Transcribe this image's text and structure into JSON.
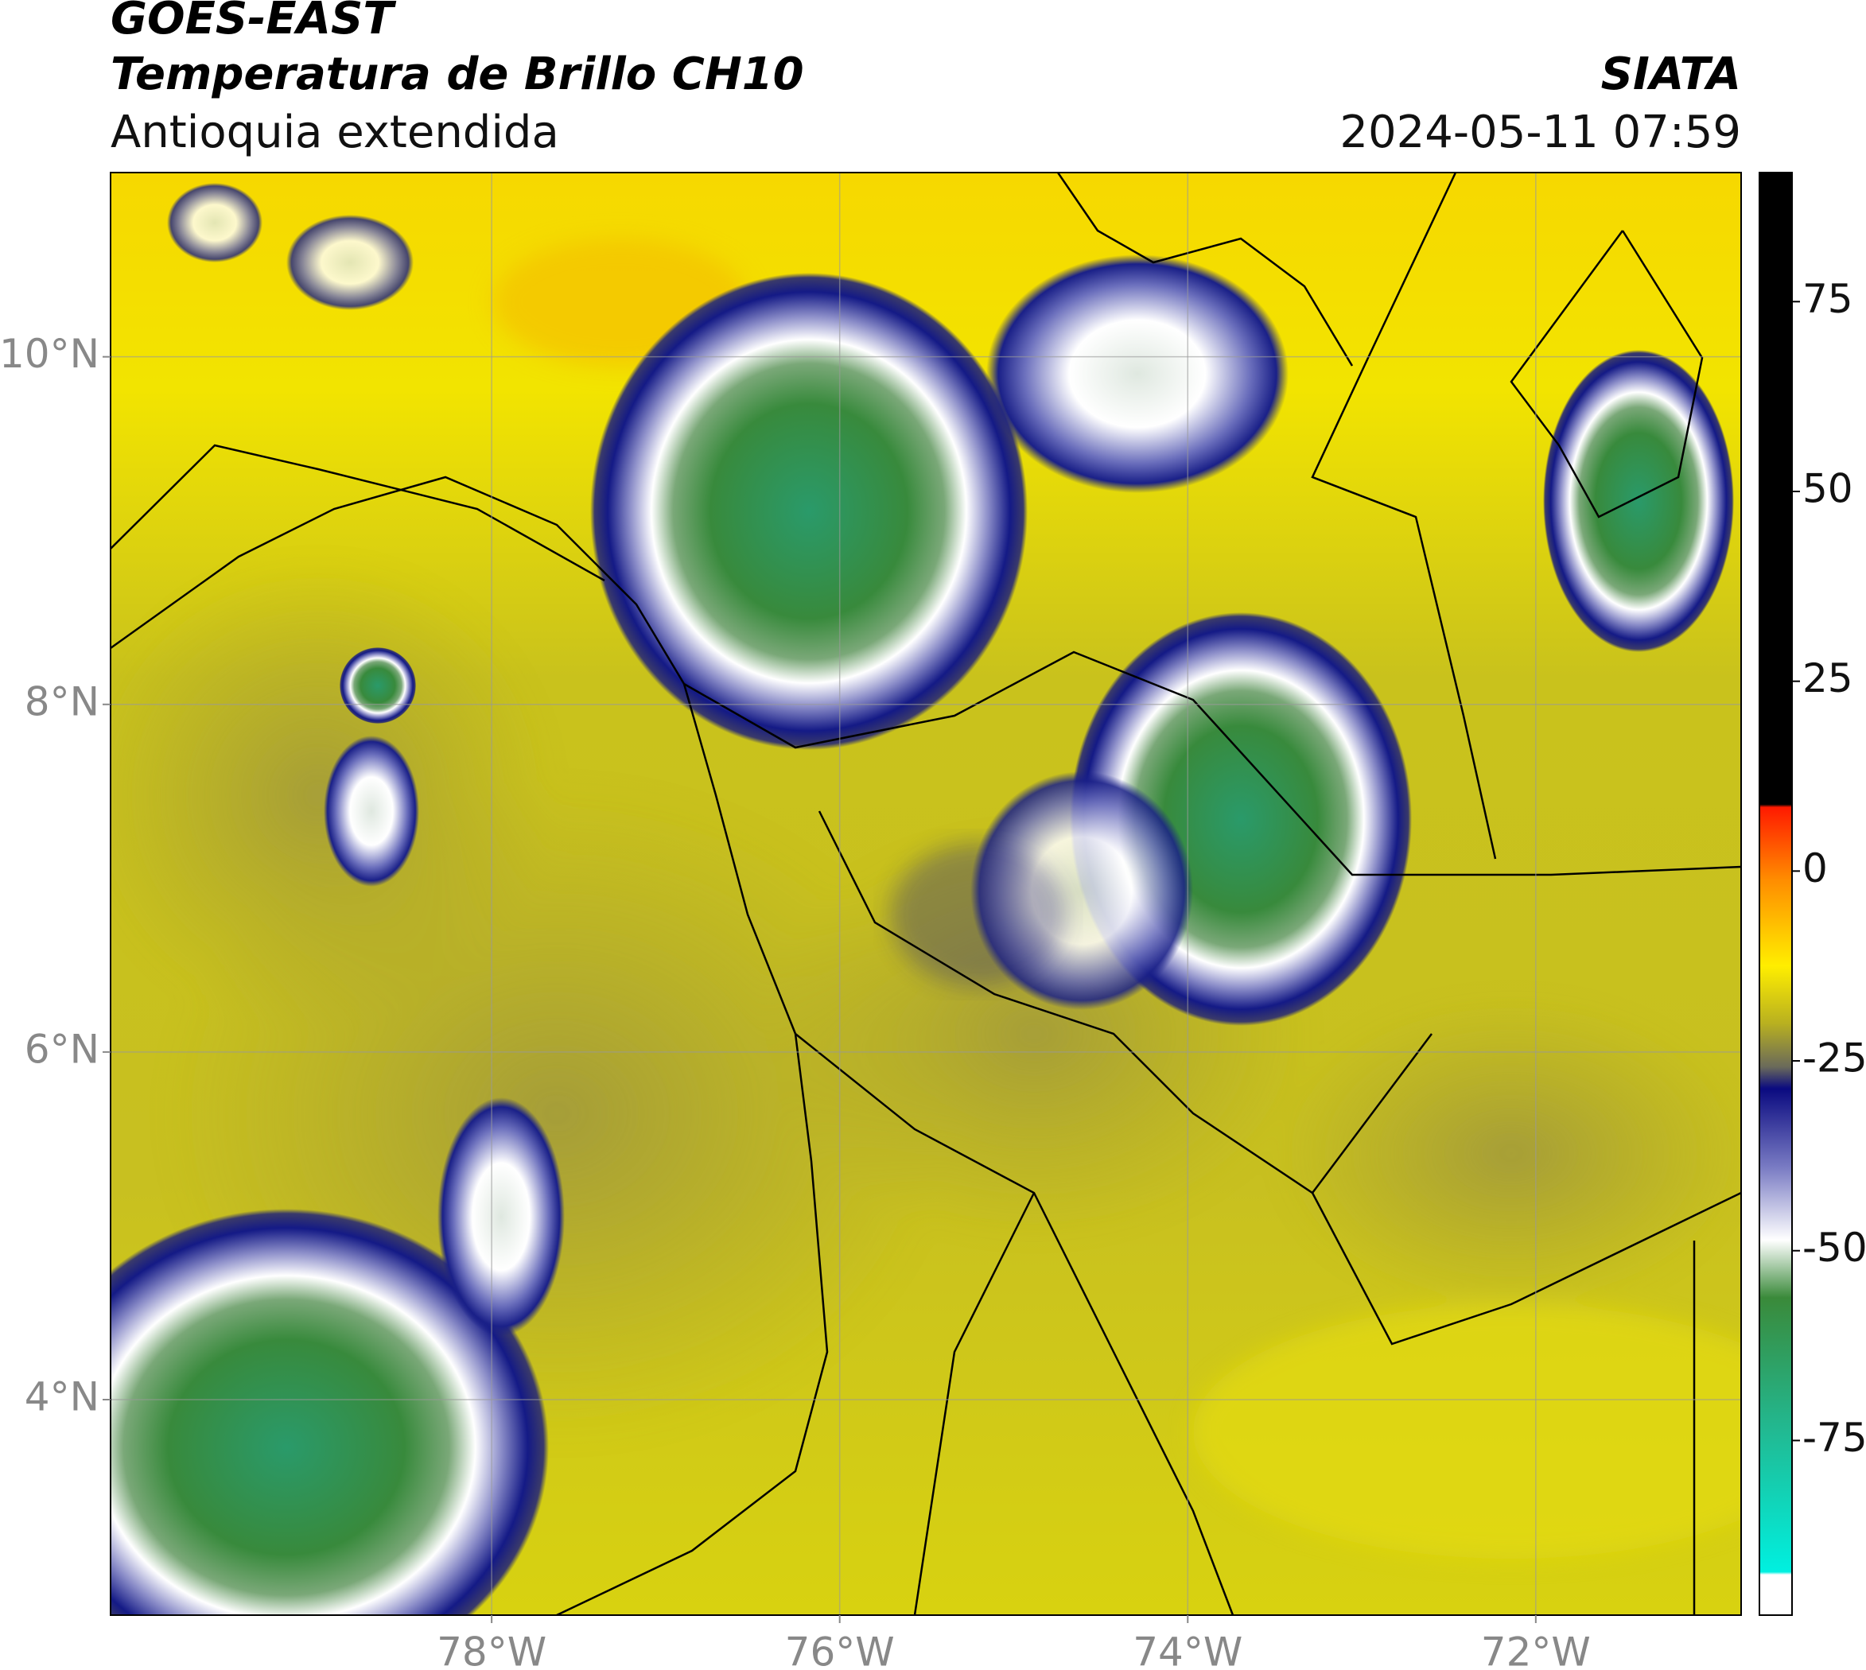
{
  "header": {
    "title": "GOES-EAST",
    "subtitle": "Temperatura de Brillo CH10",
    "region": "Antioquia extendida",
    "source": "SIATA",
    "datetime": "2024-05-11 07:59"
  },
  "map": {
    "lonlim": [
      -80.19,
      -70.82
    ],
    "latlim": [
      2.76,
      11.06
    ],
    "lonticks": [
      {
        "value": -78,
        "label": "78°W"
      },
      {
        "value": -76,
        "label": "76°W"
      },
      {
        "value": -74,
        "label": "74°W"
      },
      {
        "value": -72,
        "label": "72°W"
      }
    ],
    "latticks": [
      {
        "value": 10,
        "label": "10°N"
      },
      {
        "value": 8,
        "label": "8°N"
      },
      {
        "value": 6,
        "label": "6°N"
      },
      {
        "value": 4,
        "label": "4°N"
      }
    ],
    "grid": true
  },
  "colorbar": {
    "clim": [
      -98,
      92
    ],
    "ticks": [
      75,
      50,
      25,
      0,
      -25,
      -50,
      -75
    ]
  }
}
